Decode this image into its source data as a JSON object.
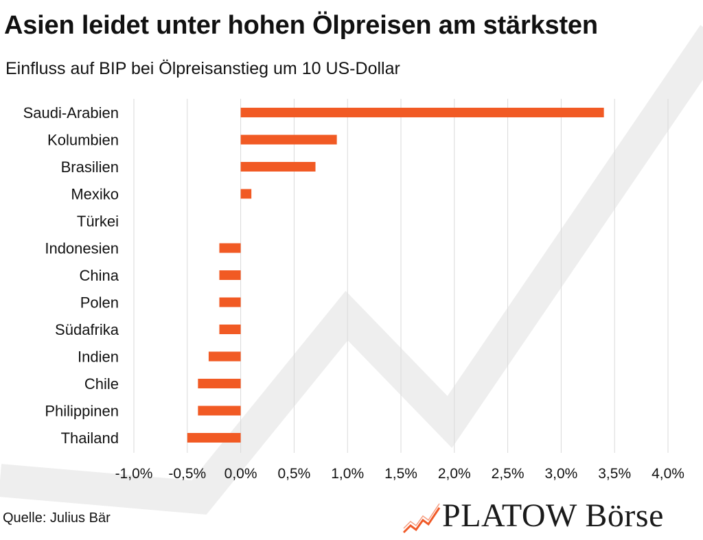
{
  "title": "Asien leidet unter hohen Ölpreisen am stärksten",
  "subtitle": "Einfluss auf BIP bei Ölpreisanstieg um 10 US-Dollar",
  "source": "Quelle: Julius Bär",
  "logo": {
    "text": "PLATOW Börse",
    "icon": "rising-line-chart-icon",
    "color": "#f05a28"
  },
  "colors": {
    "bar": "#f15a24",
    "grid": "#d9d9d9",
    "watermark": "#eeeeee"
  },
  "chart_data": {
    "type": "bar",
    "orientation": "horizontal",
    "categories": [
      "Saudi-Arabien",
      "Kolumbien",
      "Brasilien",
      "Mexiko",
      "Türkei",
      "Indonesien",
      "China",
      "Polen",
      "Südafrika",
      "Indien",
      "Chile",
      "Philippinen",
      "Thailand"
    ],
    "values": [
      3.4,
      0.9,
      0.7,
      0.1,
      0.0,
      -0.2,
      -0.2,
      -0.2,
      -0.2,
      -0.3,
      -0.4,
      -0.4,
      -0.5
    ],
    "xlim": [
      -1.0,
      4.0
    ],
    "xticks": [
      -1.0,
      -0.5,
      0.0,
      0.5,
      1.0,
      1.5,
      2.0,
      2.5,
      3.0,
      3.5,
      4.0
    ],
    "xtick_labels": [
      "-1,0%",
      "-0,5%",
      "0,0%",
      "0,5%",
      "1,0%",
      "1,5%",
      "2,0%",
      "2,5%",
      "3,0%",
      "3,5%",
      "4,0%"
    ],
    "grid": "vertical",
    "legend": "none"
  }
}
